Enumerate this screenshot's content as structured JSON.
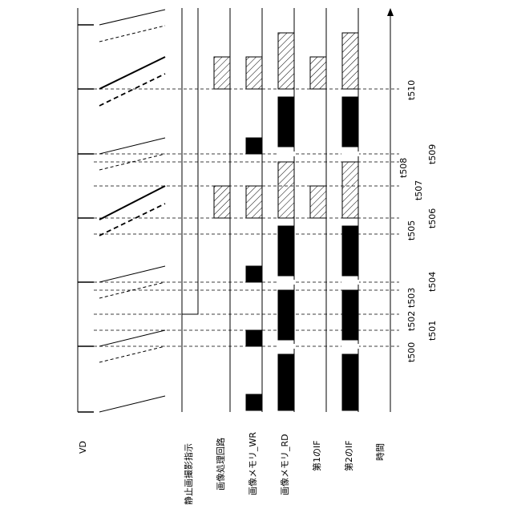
{
  "rows": {
    "vd": "VD",
    "still_capture": "静止画撮影指示",
    "image_processing": "画像処理回路",
    "image_memory_wr": "画像メモリ_WR",
    "image_memory_rd": "画像メモリ_RD",
    "first_if": "第1のIF",
    "second_if": "第2のIF",
    "time": "時間"
  },
  "time_marks": [
    "t500",
    "t501",
    "t502",
    "t503",
    "t504",
    "t505",
    "t506",
    "t507",
    "t508",
    "t509",
    "t510"
  ],
  "legend_styles": {
    "processing_fill": "hatched",
    "read_fill": "solid black",
    "line_color": "#000000"
  }
}
